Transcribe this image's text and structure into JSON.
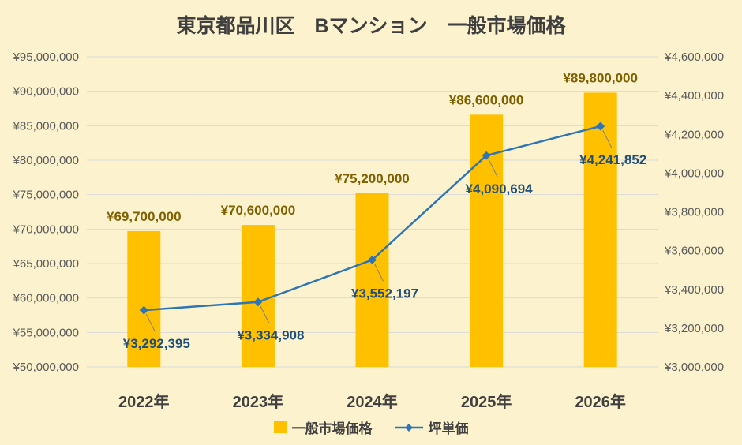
{
  "title": "東京都品川区　Bマンション　一般市場価格",
  "colors": {
    "background": "#FCF3CE",
    "bar": "#FFC000",
    "bar_label": "#7F6000",
    "line": "#2E75B6",
    "line_label": "#1F4E79",
    "grid": "#D9D9D9",
    "axis_text": "#595959",
    "category_text": "#404040",
    "leader_line": "#7F7F7F"
  },
  "chart_data": {
    "type": "bar",
    "subtype": "combo-bar-line",
    "title": "東京都品川区　Bマンション　一般市場価格",
    "categories": [
      "2022年",
      "2023年",
      "2024年",
      "2025年",
      "2026年"
    ],
    "series": [
      {
        "name": "一般市場価格",
        "type": "bar",
        "axis": "left",
        "values": [
          69700000,
          70600000,
          75200000,
          86600000,
          89800000
        ],
        "labels": [
          "¥69,700,000",
          "¥70,600,000",
          "¥75,200,000",
          "¥86,600,000",
          "¥89,800,000"
        ]
      },
      {
        "name": "坪単価",
        "type": "line",
        "axis": "right",
        "values": [
          3292395,
          3334908,
          3552197,
          4090694,
          4241852
        ],
        "labels": [
          "¥3,292,395",
          "¥3,334,908",
          "¥3,552,197",
          "¥4,090,694",
          "¥4,241,852"
        ]
      }
    ],
    "left_axis": {
      "min": 50000000,
      "max": 95000000,
      "step": 5000000,
      "tick_labels": [
        "¥50,000,000",
        "¥55,000,000",
        "¥60,000,000",
        "¥65,000,000",
        "¥70,000,000",
        "¥75,000,000",
        "¥80,000,000",
        "¥85,000,000",
        "¥90,000,000",
        "¥95,000,000"
      ]
    },
    "right_axis": {
      "min": 3000000,
      "max": 4600000,
      "step": 200000,
      "tick_labels": [
        "¥3,000,000",
        "¥3,200,000",
        "¥3,400,000",
        "¥3,600,000",
        "¥3,800,000",
        "¥4,000,000",
        "¥4,200,000",
        "¥4,400,000",
        "¥4,600,000"
      ]
    },
    "grid": true,
    "legend_position": "bottom"
  }
}
